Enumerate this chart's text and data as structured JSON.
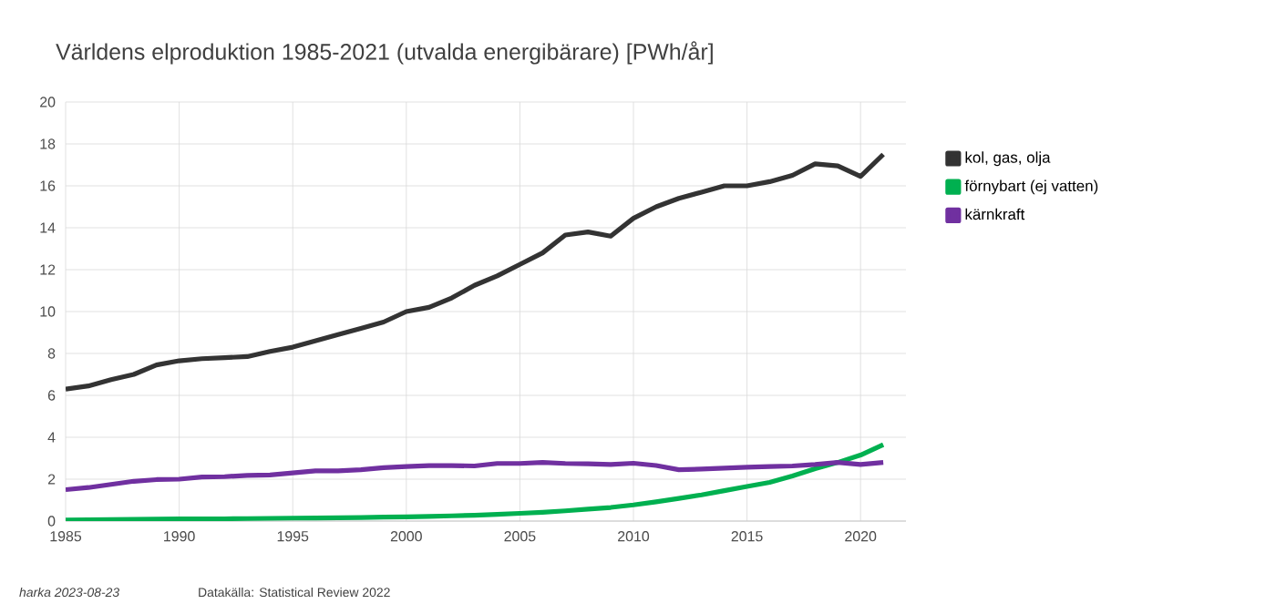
{
  "chart_data": {
    "type": "line",
    "title": "Världens elproduktion 1985-2021 (utvalda energibärare) [PWh/år]",
    "x": [
      1985,
      1986,
      1987,
      1988,
      1989,
      1990,
      1991,
      1992,
      1993,
      1994,
      1995,
      1996,
      1997,
      1998,
      1999,
      2000,
      2001,
      2002,
      2003,
      2004,
      2005,
      2006,
      2007,
      2008,
      2009,
      2010,
      2011,
      2012,
      2013,
      2014,
      2015,
      2016,
      2017,
      2018,
      2019,
      2020,
      2021
    ],
    "series": [
      {
        "name": "kol, gas, olja",
        "color": "#333333",
        "values": [
          6.3,
          6.45,
          6.75,
          7.0,
          7.45,
          7.65,
          7.75,
          7.8,
          7.85,
          8.1,
          8.3,
          8.6,
          8.9,
          9.2,
          9.5,
          10.0,
          10.2,
          10.65,
          11.25,
          11.7,
          12.25,
          12.8,
          13.65,
          13.8,
          13.6,
          14.45,
          15.0,
          15.4,
          15.7,
          16.0,
          16.0,
          16.2,
          16.5,
          17.05,
          16.95,
          16.45,
          17.5
        ]
      },
      {
        "name": "förnybart (ej vatten)",
        "color": "#00b050",
        "values": [
          0.05,
          0.06,
          0.07,
          0.08,
          0.09,
          0.1,
          0.1,
          0.11,
          0.12,
          0.13,
          0.14,
          0.15,
          0.16,
          0.17,
          0.19,
          0.2,
          0.22,
          0.25,
          0.28,
          0.32,
          0.37,
          0.42,
          0.49,
          0.57,
          0.65,
          0.77,
          0.92,
          1.08,
          1.25,
          1.45,
          1.65,
          1.85,
          2.15,
          2.5,
          2.8,
          3.15,
          3.65
        ]
      },
      {
        "name": "kärnkraft",
        "color": "#7030a0",
        "values": [
          1.5,
          1.6,
          1.75,
          1.9,
          1.98,
          2.0,
          2.1,
          2.12,
          2.18,
          2.2,
          2.3,
          2.4,
          2.4,
          2.45,
          2.55,
          2.6,
          2.65,
          2.65,
          2.63,
          2.75,
          2.75,
          2.8,
          2.75,
          2.73,
          2.7,
          2.76,
          2.65,
          2.45,
          2.48,
          2.53,
          2.57,
          2.6,
          2.63,
          2.7,
          2.8,
          2.7,
          2.8
        ]
      }
    ],
    "xlim": [
      1985,
      2022
    ],
    "ylim": [
      0,
      20
    ],
    "xticks": [
      1985,
      1990,
      1995,
      2000,
      2005,
      2010,
      2015,
      2020
    ],
    "yticks": [
      0,
      2,
      4,
      6,
      8,
      10,
      12,
      14,
      16,
      18,
      20
    ],
    "grid": true,
    "legend": "right",
    "marker": "none",
    "line_style": "solid",
    "annotations": [
      "harka 2023-08-23",
      "Datakälla: Statistical Review 2022"
    ]
  }
}
